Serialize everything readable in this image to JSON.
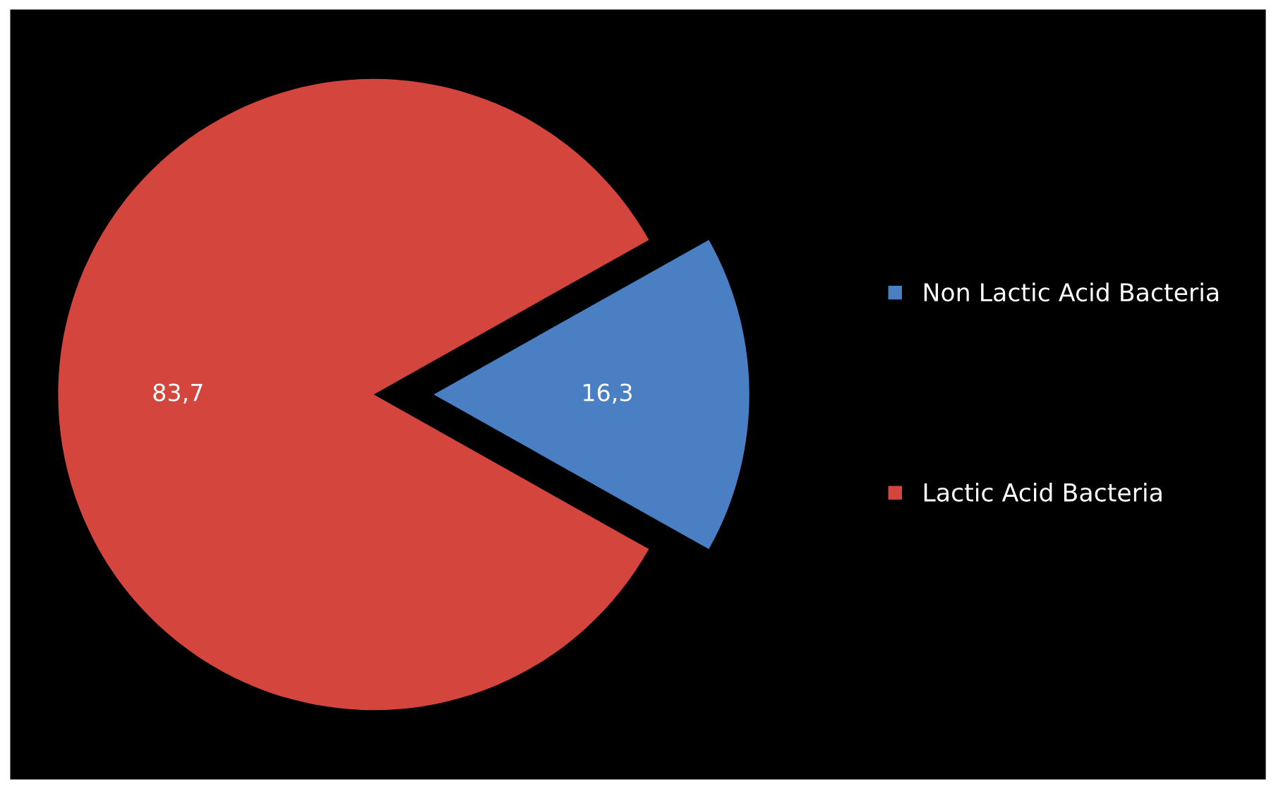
{
  "chart_data": {
    "type": "pie",
    "categories": [
      "Non Lactic Acid Bacteria",
      "Lactic Acid Bacteria"
    ],
    "values": [
      16.3,
      83.7
    ],
    "value_labels": [
      "16,3",
      "83,7"
    ],
    "colors": [
      "#4a7fc4",
      "#d4453d"
    ],
    "legend": "right"
  }
}
